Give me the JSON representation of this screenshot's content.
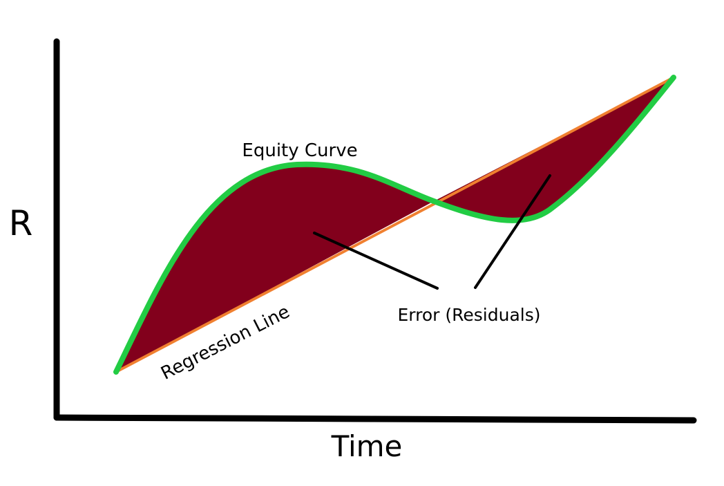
{
  "diagram": {
    "y_axis_label": "R",
    "x_axis_label": "Time",
    "curve_label": "Equity Curve",
    "line_label": "Regression Line",
    "error_label": "Error (Residuals)"
  },
  "colors": {
    "background": "#ffffff",
    "axis": "#000000",
    "equity_curve": "#22cc44",
    "regression_line": "#f08030",
    "error_fill": "#82001c",
    "pointer": "#000000"
  }
}
